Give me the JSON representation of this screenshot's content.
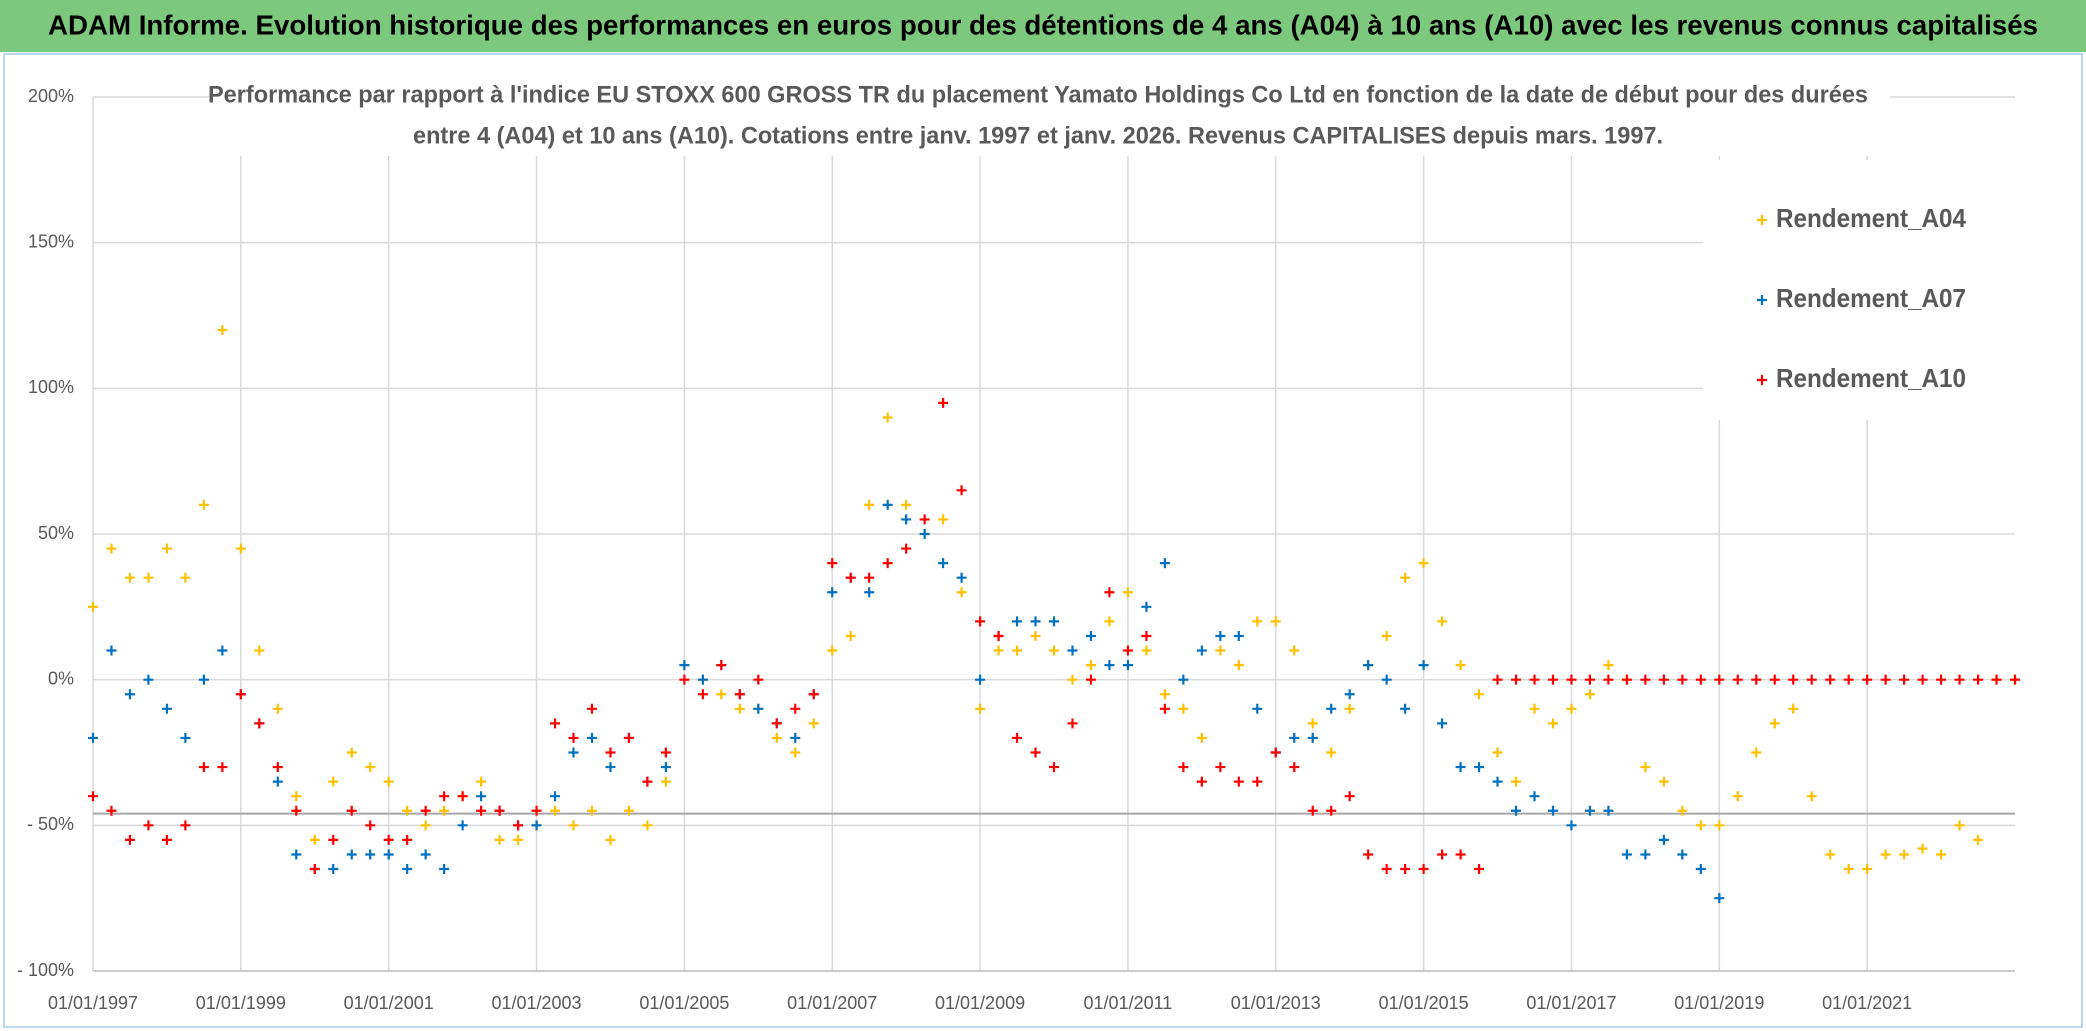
{
  "chart_data": {
    "type": "scatter",
    "title": "ADAM Informe. Evolution historique des performances en euros pour des détentions de 4 ans (A04) à 10 ans (A10) avec les revenus connus capitalisés",
    "subtitle": [
      "Performance par rapport à l'indice EU STOXX 600 GROSS TR  du placement Yamato Holdings Co Ltd en fonction de la date de début pour des durées",
      "entre 4 (A04) et 10 ans (A10). Cotations entre janv. 1997 et janv. 2026. Revenus CAPITALISES depuis mars. 1997."
    ],
    "x": [
      1997,
      1997.25,
      1997.5,
      1997.75,
      1998,
      1998.25,
      1998.5,
      1998.75,
      1999,
      1999.25,
      1999.5,
      1999.75,
      2000,
      2000.25,
      2000.5,
      2000.75,
      2001,
      2001.25,
      2001.5,
      2001.75,
      2002,
      2002.25,
      2002.5,
      2002.75,
      2003,
      2003.25,
      2003.5,
      2003.75,
      2004,
      2004.25,
      2004.5,
      2004.75,
      2005,
      2005.25,
      2005.5,
      2005.75,
      2006,
      2006.25,
      2006.5,
      2006.75,
      2007,
      2007.25,
      2007.5,
      2007.75,
      2008,
      2008.25,
      2008.5,
      2008.75,
      2009,
      2009.25,
      2009.5,
      2009.75,
      2010,
      2010.25,
      2010.5,
      2010.75,
      2011,
      2011.25,
      2011.5,
      2011.75,
      2012,
      2012.25,
      2012.5,
      2012.75,
      2013,
      2013.25,
      2013.5,
      2013.75,
      2014,
      2014.25,
      2014.5,
      2014.75,
      2015,
      2015.25,
      2015.5,
      2015.75,
      2016,
      2016.25,
      2016.5,
      2016.75,
      2017,
      2017.25,
      2017.5,
      2017.75,
      2018,
      2018.25,
      2018.5,
      2018.75,
      2019,
      2019.25,
      2019.5,
      2019.75,
      2020,
      2020.25,
      2020.5,
      2020.75,
      2021,
      2021.25,
      2021.5,
      2021.75,
      2022,
      2022.25,
      2022.5,
      2022.75,
      2023
    ],
    "series": [
      {
        "name": "Rendement_A04",
        "color": "#ffc000",
        "values": [
          25,
          45,
          35,
          35,
          45,
          35,
          60,
          120,
          45,
          10,
          -10,
          -40,
          -55,
          -35,
          -25,
          -30,
          -35,
          -45,
          -50,
          -45,
          -40,
          -35,
          -55,
          -55,
          -50,
          -45,
          -50,
          -45,
          -55,
          -45,
          -50,
          -35,
          5,
          0,
          -5,
          -10,
          -10,
          -20,
          -25,
          -15,
          10,
          15,
          60,
          90,
          60,
          50,
          55,
          30,
          -10,
          10,
          10,
          15,
          10,
          0,
          5,
          20,
          30,
          10,
          -5,
          -10,
          -20,
          10,
          5,
          20,
          20,
          10,
          -15,
          -25,
          -10,
          5,
          15,
          35,
          40,
          20,
          5,
          -5,
          -25,
          -35,
          -10,
          -15,
          -10,
          -5,
          5,
          0,
          -30,
          -35,
          -45,
          -50,
          -50,
          -40,
          -25,
          -15,
          -10,
          -40,
          -60,
          -65,
          -65,
          -60,
          -60,
          -58,
          -60,
          -50,
          -55,
          0,
          0
        ]
      },
      {
        "name": "Rendement_A07",
        "color": "#0070c0",
        "values": [
          -20,
          10,
          -5,
          0,
          -10,
          -20,
          0,
          10,
          -5,
          -15,
          -35,
          -60,
          -65,
          -65,
          -60,
          -60,
          -60,
          -65,
          -60,
          -65,
          -50,
          -40,
          -45,
          -50,
          -50,
          -40,
          -25,
          -20,
          -30,
          -20,
          -35,
          -30,
          5,
          0,
          5,
          -5,
          -10,
          -15,
          -20,
          -5,
          30,
          35,
          30,
          60,
          55,
          50,
          40,
          35,
          0,
          15,
          20,
          20,
          20,
          10,
          15,
          5,
          5,
          25,
          40,
          0,
          10,
          15,
          15,
          -10,
          -25,
          -20,
          -20,
          -10,
          -5,
          5,
          0,
          -10,
          5,
          -15,
          -30,
          -30,
          -35,
          -45,
          -40,
          -45,
          -50,
          -45,
          -45,
          -60,
          -60,
          -55,
          -60,
          -65,
          -75,
          null,
          null,
          null,
          null,
          null,
          null,
          null,
          null,
          null,
          null,
          null,
          null,
          null,
          null,
          null,
          null
        ]
      },
      {
        "name": "Rendement_A10",
        "color": "#ff0000",
        "values": [
          -40,
          -45,
          -55,
          -50,
          -55,
          -50,
          -30,
          -30,
          -5,
          -15,
          -30,
          -45,
          -65,
          -55,
          -45,
          -50,
          -55,
          -55,
          -45,
          -40,
          -40,
          -45,
          -45,
          -50,
          -45,
          -15,
          -20,
          -10,
          -25,
          -20,
          -35,
          -25,
          0,
          -5,
          5,
          -5,
          0,
          -15,
          -10,
          -5,
          40,
          35,
          35,
          40,
          45,
          55,
          95,
          65,
          20,
          15,
          -20,
          -25,
          -30,
          -15,
          0,
          30,
          10,
          15,
          -10,
          -30,
          -35,
          -30,
          -35,
          -35,
          -25,
          -30,
          -45,
          -45,
          -40,
          -60,
          -65,
          -65,
          -65,
          -60,
          -60,
          -65,
          0,
          0,
          0,
          0,
          0,
          0,
          0,
          0,
          0,
          0,
          0,
          0,
          0,
          0,
          0,
          0,
          0,
          0,
          0,
          0,
          0,
          0,
          0,
          0,
          0,
          0,
          0,
          0,
          0
        ]
      }
    ],
    "xlim": [
      1997,
      2023
    ],
    "xticks": [
      {
        "value": 1997,
        "label": "01/01/1997"
      },
      {
        "value": 1999,
        "label": "01/01/1999"
      },
      {
        "value": 2001,
        "label": "01/01/2001"
      },
      {
        "value": 2003,
        "label": "01/01/2003"
      },
      {
        "value": 2005,
        "label": "01/01/2005"
      },
      {
        "value": 2007,
        "label": "01/01/2007"
      },
      {
        "value": 2009,
        "label": "01/01/2009"
      },
      {
        "value": 2011,
        "label": "01/01/2011"
      },
      {
        "value": 2013,
        "label": "01/01/2013"
      },
      {
        "value": 2015,
        "label": "01/01/2015"
      },
      {
        "value": 2017,
        "label": "01/01/2017"
      },
      {
        "value": 2019,
        "label": "01/01/2019"
      },
      {
        "value": 2021,
        "label": "01/01/2021"
      }
    ],
    "ylim": [
      -100,
      200
    ],
    "yticks": [
      {
        "value": -100,
        "label": "- 100%"
      },
      {
        "value": -50,
        "label": "- 50%"
      },
      {
        "value": 0,
        "label": "0%"
      },
      {
        "value": 50,
        "label": "50%"
      },
      {
        "value": 100,
        "label": "100%"
      },
      {
        "value": 150,
        "label": "150%"
      },
      {
        "value": 200,
        "label": "200%"
      }
    ],
    "reference_line": -46,
    "grid": true,
    "legend": "upper right"
  }
}
